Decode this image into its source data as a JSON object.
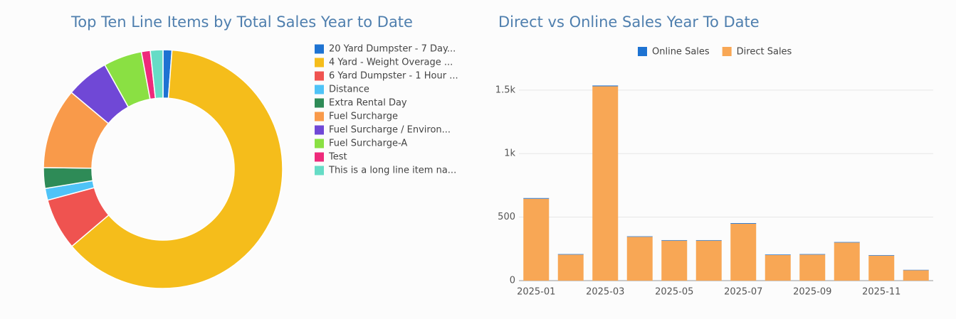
{
  "chart_data": [
    {
      "type": "pie",
      "title": "Top Ten Line Items by Total Sales Year to Date",
      "categories": [
        "20 Yard Dumpster - 7 Day...",
        "4 Yard - Weight Overage ...",
        "6 Yard Dumpster - 1 Hour ...",
        "Distance",
        "Extra Rental Day",
        "Fuel Surcharge",
        "Fuel Surcharge / Environ...",
        "Fuel Surcharge-A",
        "Test",
        "This is a long line item na..."
      ],
      "values": [
        1.2,
        62.6,
        7.0,
        1.6,
        2.8,
        10.9,
        5.8,
        5.2,
        1.2,
        1.7
      ],
      "colors": [
        "#1e73d2",
        "#f5bd1b",
        "#ef5350",
        "#4fc3f7",
        "#2e8b57",
        "#f99a4a",
        "#7048d6",
        "#8ae043",
        "#ee2a7b",
        "#66dcc6"
      ],
      "legend": "right"
    },
    {
      "type": "stacked-bar",
      "title": "Direct vs Online Sales Year To Date",
      "categories": [
        "2025-01",
        null,
        "2025-03",
        null,
        "2025-05",
        null,
        "2025-07",
        null,
        "2025-09",
        null,
        "2025-11",
        null
      ],
      "series": [
        {
          "name": "Online Sales",
          "color": "#1e73d2",
          "values": [
            5,
            4,
            6,
            4,
            4,
            4,
            5,
            4,
            4,
            4,
            4,
            3
          ]
        },
        {
          "name": "Direct Sales",
          "color": "#f8a755",
          "values": [
            645,
            205,
            1530,
            345,
            315,
            315,
            448,
            202,
            205,
            300,
            197,
            82
          ]
        }
      ],
      "ylim": [
        0,
        1650
      ],
      "yticks": [
        0,
        500,
        {
          "value": 1000,
          "label": "1k"
        },
        {
          "value": 1500,
          "label": "1.5k"
        }
      ],
      "grid": true,
      "legend": "top"
    }
  ]
}
